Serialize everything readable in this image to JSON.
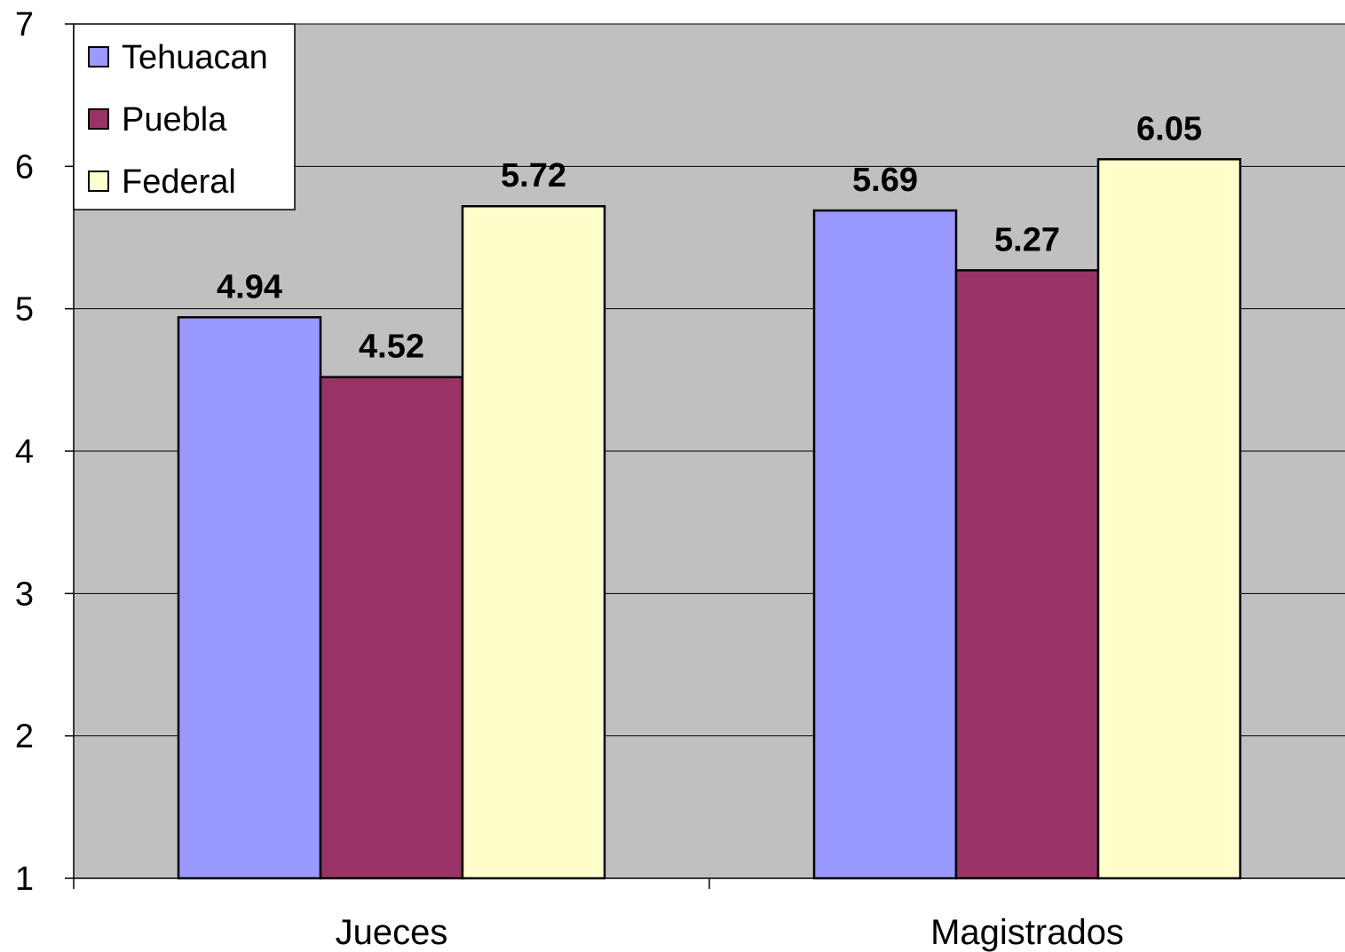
{
  "chart_data": {
    "type": "bar",
    "title": "",
    "xlabel": "",
    "ylabel": "",
    "ylim": [
      1,
      7
    ],
    "yticks": [
      1,
      2,
      3,
      4,
      5,
      6,
      7
    ],
    "grid": true,
    "legend_position": "top-left",
    "categories": [
      "Jueces",
      "Magistrados"
    ],
    "series": [
      {
        "name": "Tehuacan",
        "color": "#9999ff",
        "values": [
          4.94,
          5.69
        ],
        "labels": [
          "4.94",
          "5.69"
        ]
      },
      {
        "name": "Puebla",
        "color": "#993366",
        "values": [
          4.52,
          5.27
        ],
        "labels": [
          "4.52",
          "5.27"
        ]
      },
      {
        "name": "Federal",
        "color": "#ffffcc",
        "values": [
          5.72,
          6.05
        ],
        "labels": [
          "5.72",
          "6.05"
        ]
      }
    ],
    "plot_background": "#c0c0c0"
  }
}
